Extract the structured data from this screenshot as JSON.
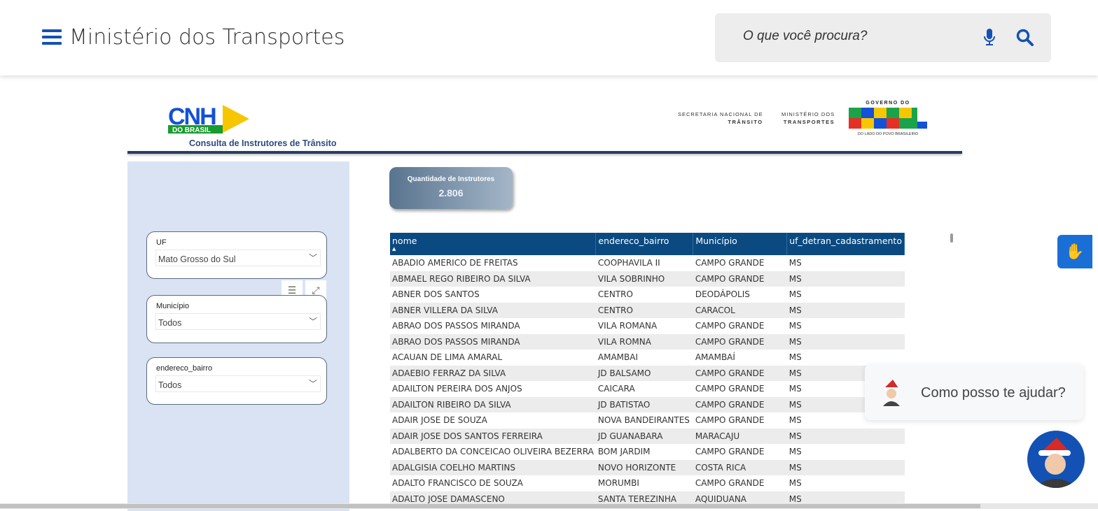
{
  "header": {
    "title": "Ministério dos Transportes",
    "search_placeholder": "O que você procura?"
  },
  "report": {
    "logo_text": "CNH",
    "logo_sub": "DO BRASIL",
    "subtitle": "Consulta de Instrutores de Trânsito",
    "sec_line1": "SECRETARIA NACIONAL DE",
    "sec_line2": "TRÂNSITO",
    "min_line1": "MINISTÉRIO DOS",
    "min_line2": "TRANSPORTES",
    "gov_top": "GOVERNO DO",
    "gov_main": "BRASIL",
    "gov_bottom": "DO LADO DO POVO BRASILEIRO",
    "kpi": {
      "label": "Quantidade de Instrutores",
      "value": "2.806"
    },
    "slicers": [
      {
        "label": "UF",
        "value": "Mato Grosso do Sul"
      },
      {
        "label": "Município",
        "value": "Todos"
      },
      {
        "label": "endereco_bairro",
        "value": "Todos"
      }
    ],
    "table": {
      "columns": [
        "nome",
        "endereco_bairro",
        "Município",
        "uf_detran_cadastramento"
      ],
      "sort": "nome ascending",
      "rows": [
        [
          "ABADIO AMERICO DE FREITAS",
          "COOPHAVILA II",
          "CAMPO GRANDE",
          "MS"
        ],
        [
          "ABMAEL REGO RIBEIRO DA SILVA",
          "VILA SOBRINHO",
          "CAMPO GRANDE",
          "MS"
        ],
        [
          "ABNER DOS SANTOS",
          "CENTRO",
          "DEODÁPOLIS",
          "MS"
        ],
        [
          "ABNER VILLERA DA SILVA",
          "CENTRO",
          "CARACOL",
          "MS"
        ],
        [
          "ABRAO DOS PASSOS MIRANDA",
          "VILA ROMANA",
          "CAMPO GRANDE",
          "MS"
        ],
        [
          "ABRAO DOS PASSOS MIRANDA",
          "VILA ROMNA",
          "CAMPO GRANDE",
          "MS"
        ],
        [
          "ACAUAN DE LIMA AMARAL",
          "AMAMBAI",
          "AMAMBAÍ",
          "MS"
        ],
        [
          "ADAEBIO FERRAZ DA SILVA",
          "JD BALSAMO",
          "CAMPO GRANDE",
          "MS"
        ],
        [
          "ADAILTON PEREIRA DOS ANJOS",
          "CAICARA",
          "CAMPO GRANDE",
          "MS"
        ],
        [
          "ADAILTON RIBEIRO DA SILVA",
          "JD BATISTAO",
          "CAMPO GRANDE",
          "MS"
        ],
        [
          "ADAIR JOSE DE SOUZA",
          "NOVA BANDEIRANTES",
          "CAMPO GRANDE",
          "MS"
        ],
        [
          "ADAIR JOSE DOS SANTOS FERREIRA",
          "JD GUANABARA",
          "MARACAJU",
          "MS"
        ],
        [
          "ADALBERTO DA CONCEICAO OLIVEIRA BEZERRA",
          "BOM JARDIM",
          "CAMPO GRANDE",
          "MS"
        ],
        [
          "ADALGISIA COELHO MARTINS",
          "NOVO HORIZONTE",
          "COSTA RICA",
          "MS"
        ],
        [
          "ADALTO FRANCISCO DE SOUZA",
          "MORUMBI",
          "CAMPO GRANDE",
          "MS"
        ],
        [
          "ADALTO JOSE DAMASCENO",
          "SANTA TEREZINHA",
          "AQUIDUANA",
          "MS"
        ]
      ]
    }
  },
  "chat": {
    "message": "Como posso te ajudar?"
  },
  "colors": {
    "brand_blue": "#1351b4",
    "table_header": "#0b4a80",
    "sidebar": "#dae3f3"
  }
}
